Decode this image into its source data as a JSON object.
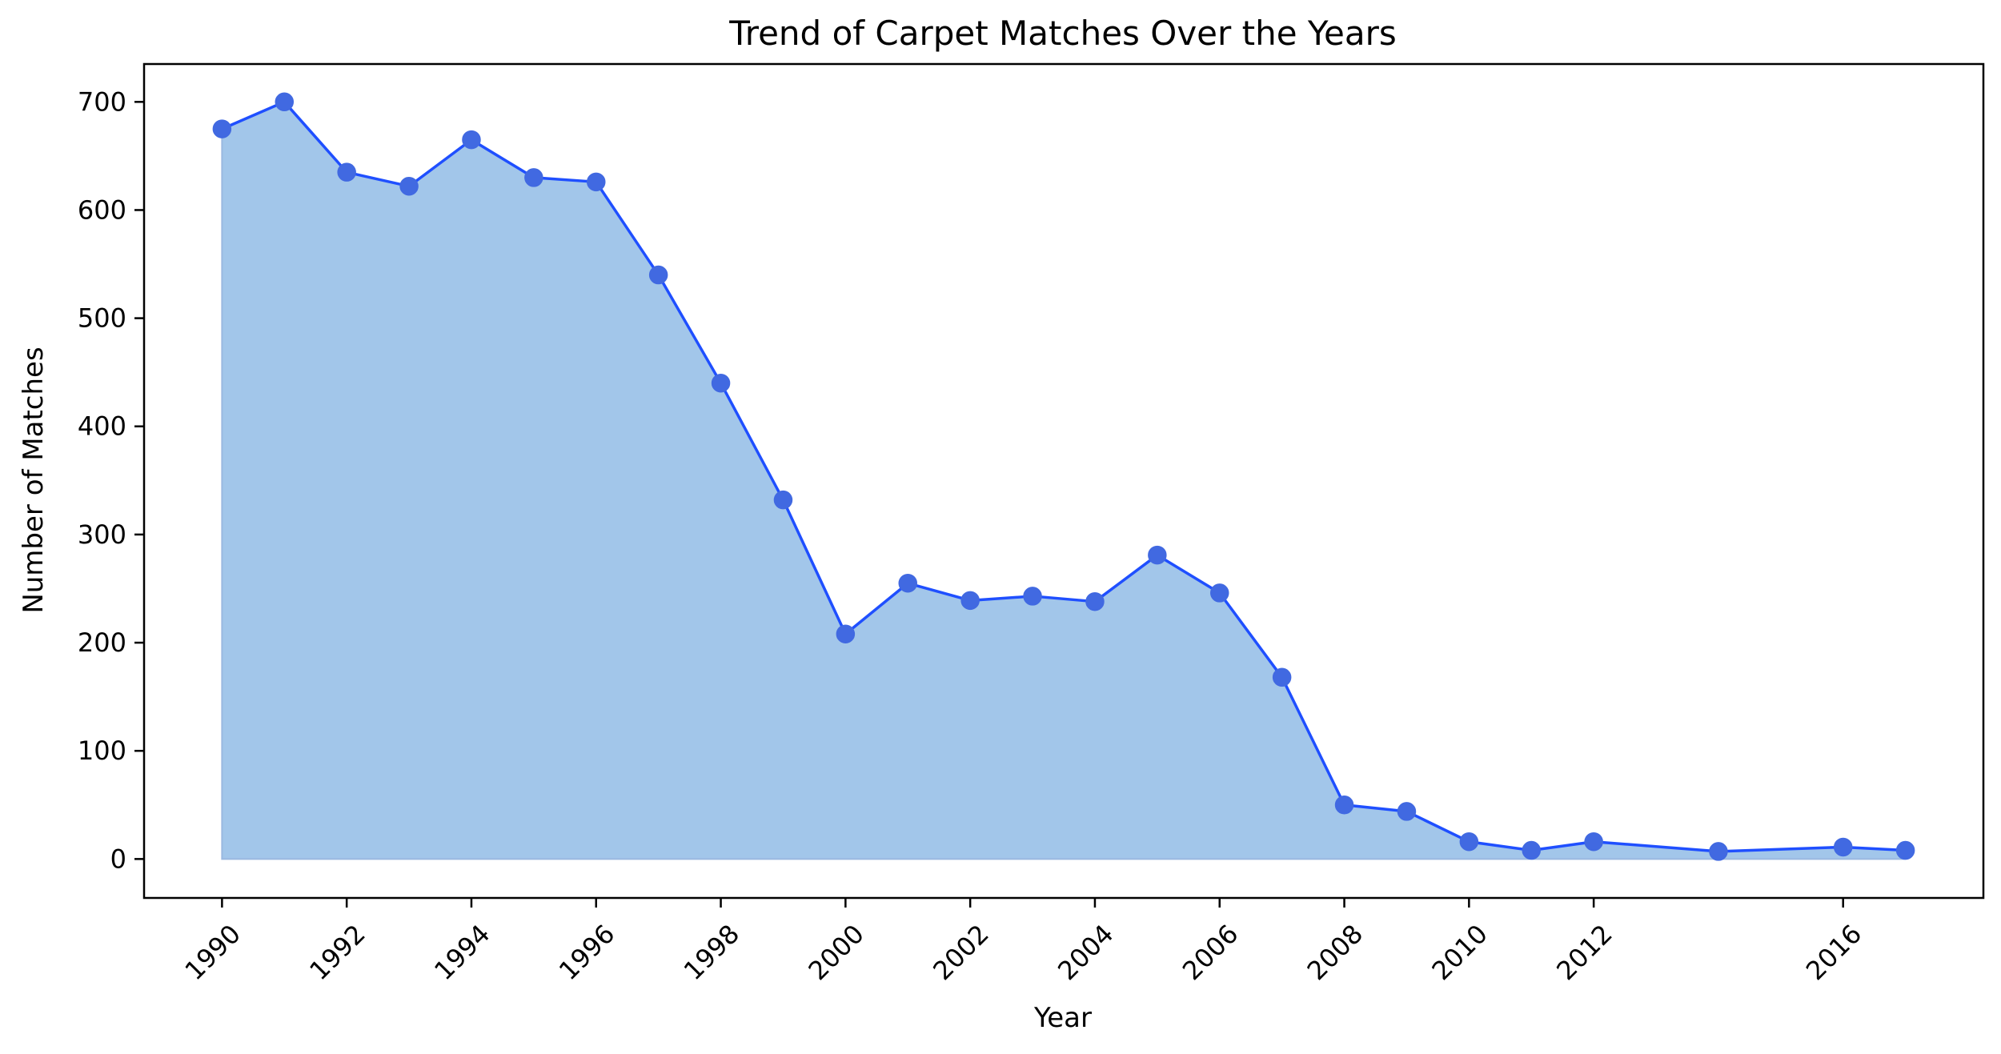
{
  "chart_data": {
    "type": "area",
    "title": "Trend of Carpet Matches Over the Years",
    "xlabel": "Year",
    "ylabel": "Number of Matches",
    "x": [
      1990,
      1991,
      1992,
      1993,
      1994,
      1995,
      1996,
      1997,
      1998,
      1999,
      2000,
      2001,
      2002,
      2003,
      2004,
      2005,
      2006,
      2007,
      2008,
      2009,
      2010,
      2011,
      2012,
      2014,
      2016,
      2017
    ],
    "series": [
      {
        "values": [
          675,
          700,
          635,
          622,
          665,
          630,
          626,
          540,
          440,
          332,
          208,
          255,
          239,
          243,
          238,
          281,
          246,
          168,
          50,
          44,
          16,
          8,
          16,
          7,
          11,
          8
        ]
      }
    ],
    "xlim": [
      1988.75,
      2018.25
    ],
    "ylim": [
      -36,
      735
    ],
    "xticks": [
      1990,
      1992,
      1994,
      1996,
      1998,
      2000,
      2002,
      2004,
      2006,
      2008,
      2010,
      2012,
      2016
    ],
    "yticks": [
      0,
      100,
      200,
      300,
      400,
      500,
      600,
      700
    ],
    "grid": false,
    "colors": {
      "line": "#1f4fff",
      "marker": "#4169e1",
      "fill": "#a2c6ea",
      "fill_edge": "#9ab8e0"
    }
  }
}
